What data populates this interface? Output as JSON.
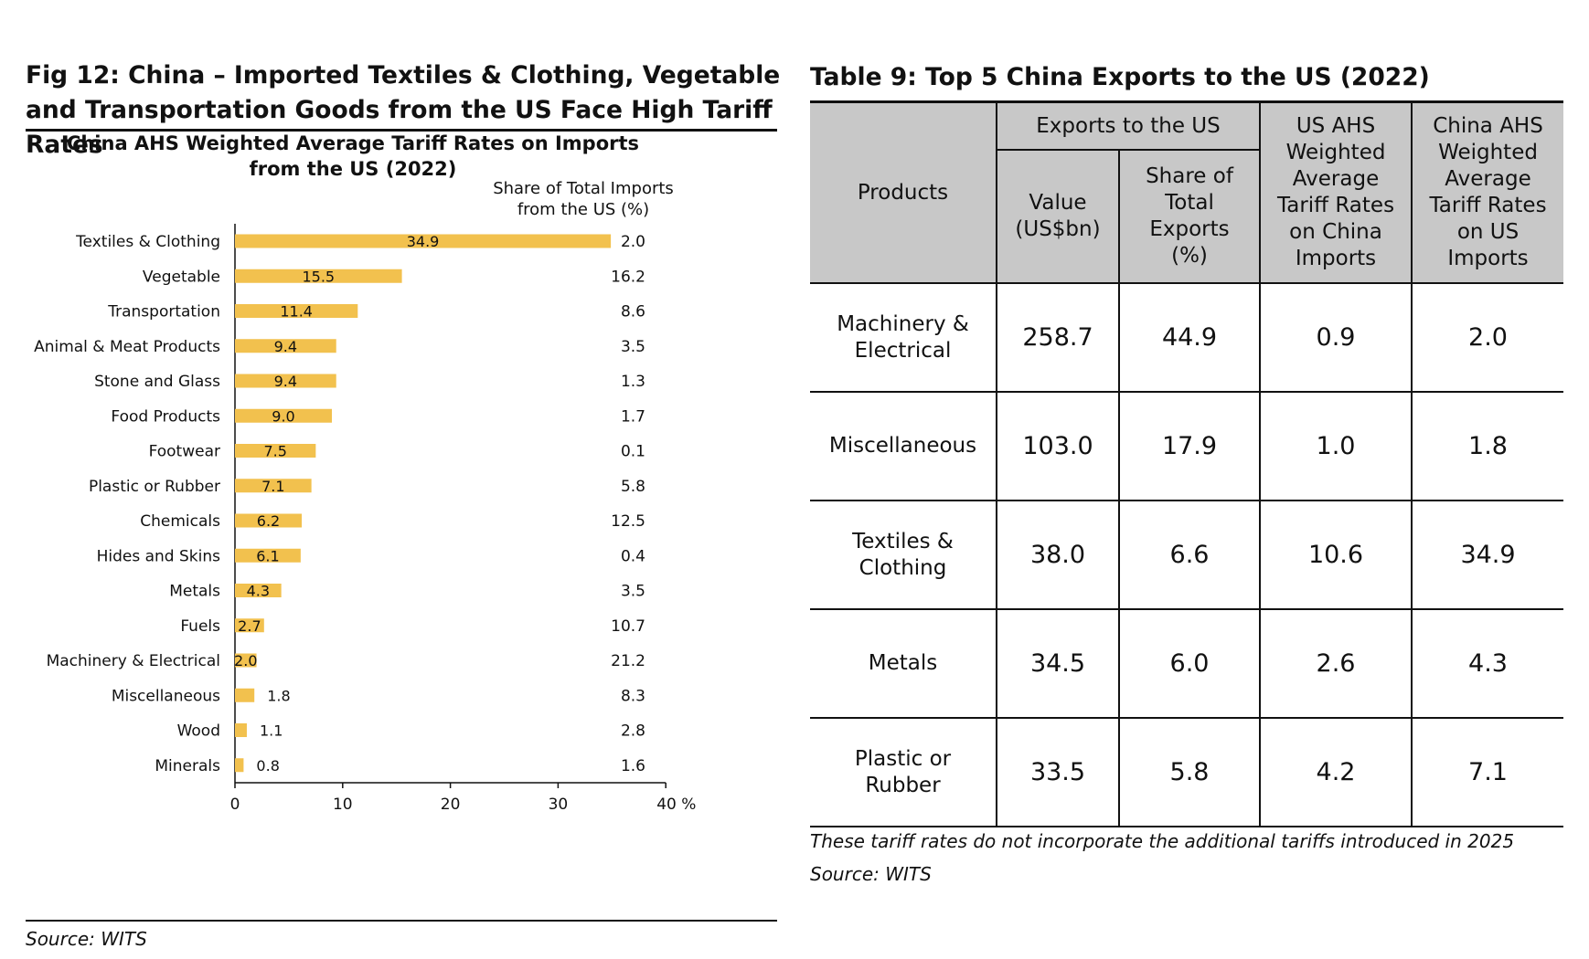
{
  "figure": {
    "title": "Fig 12: China – Imported Textiles & Clothing, Vegetable and Transportation Goods from the US Face High Tariff Rates",
    "source": "Source: WITS"
  },
  "chart_data": {
    "type": "bar",
    "orientation": "horizontal",
    "title": "China AHS Weighted Average Tariff Rates on Imports from the US (2022)",
    "title_lines": [
      "China AHS Weighted Average Tariff Rates on Imports",
      "from the US (2022)"
    ],
    "share_header_lines": [
      "Share of Total Imports",
      "from the US (%)"
    ],
    "categories": [
      "Textiles & Clothing",
      "Vegetable",
      "Transportation",
      "Animal & Meat Products",
      "Stone and Glass",
      "Food Products",
      "Footwear",
      "Plastic or Rubber",
      "Chemicals",
      "Hides and Skins",
      "Metals",
      "Fuels",
      "Machinery & Electrical",
      "Miscellaneous",
      "Wood",
      "Minerals"
    ],
    "values": [
      34.9,
      15.5,
      11.4,
      9.4,
      9.4,
      9.0,
      7.5,
      7.1,
      6.2,
      6.1,
      4.3,
      2.7,
      2.0,
      1.8,
      1.1,
      0.8
    ],
    "value_labels": [
      "34.9",
      "15.5",
      "11.4",
      "9.4",
      "9.4",
      "9.0",
      "7.5",
      "7.1",
      "6.2",
      "6.1",
      "4.3",
      "2.7",
      "2.0",
      "1.8",
      "1.1",
      "0.8"
    ],
    "share_of_total_imports": [
      "2.0",
      "16.2",
      "8.6",
      "3.5",
      "1.3",
      "1.7",
      "0.1",
      "5.8",
      "12.5",
      "0.4",
      "3.5",
      "10.7",
      "21.2",
      "8.3",
      "2.8",
      "1.6"
    ],
    "xlim": [
      0,
      40
    ],
    "xticks": [
      0,
      10,
      20,
      30,
      40
    ],
    "xtick_labels": [
      "0",
      "10",
      "20",
      "30",
      "40 %"
    ],
    "bar_color": "#f2c14e",
    "grid": false
  },
  "table": {
    "title": "Table 9: Top 5 China Exports to the US (2022)",
    "header_color": "#c8c8c8",
    "col_products": "Products",
    "col_exports_group": "Exports to the US",
    "col_value": "Value (US$bn)",
    "col_share": "Share of Total Exports (%)",
    "col_us_ahs": "US AHS Weighted Average Tariff Rates on China Imports",
    "col_china_ahs": "China AHS Weighted Average Tariff Rates on US Imports",
    "rows": [
      {
        "product": "Machinery & Electrical",
        "value": "258.7",
        "share": "44.9",
        "us_ahs": "0.9",
        "china_ahs": "2.0"
      },
      {
        "product": "Miscellaneous",
        "value": "103.0",
        "share": "17.9",
        "us_ahs": "1.0",
        "china_ahs": "1.8"
      },
      {
        "product": "Textiles & Clothing",
        "value": "38.0",
        "share": "6.6",
        "us_ahs": "10.6",
        "china_ahs": "34.9"
      },
      {
        "product": "Metals",
        "value": "34.5",
        "share": "6.0",
        "us_ahs": "2.6",
        "china_ahs": "4.3"
      },
      {
        "product": "Plastic or Rubber",
        "value": "33.5",
        "share": "5.8",
        "us_ahs": "4.2",
        "china_ahs": "7.1"
      }
    ],
    "note": "These tariff rates do not incorporate the additional tariffs introduced in 2025",
    "source": "Source: WITS"
  }
}
